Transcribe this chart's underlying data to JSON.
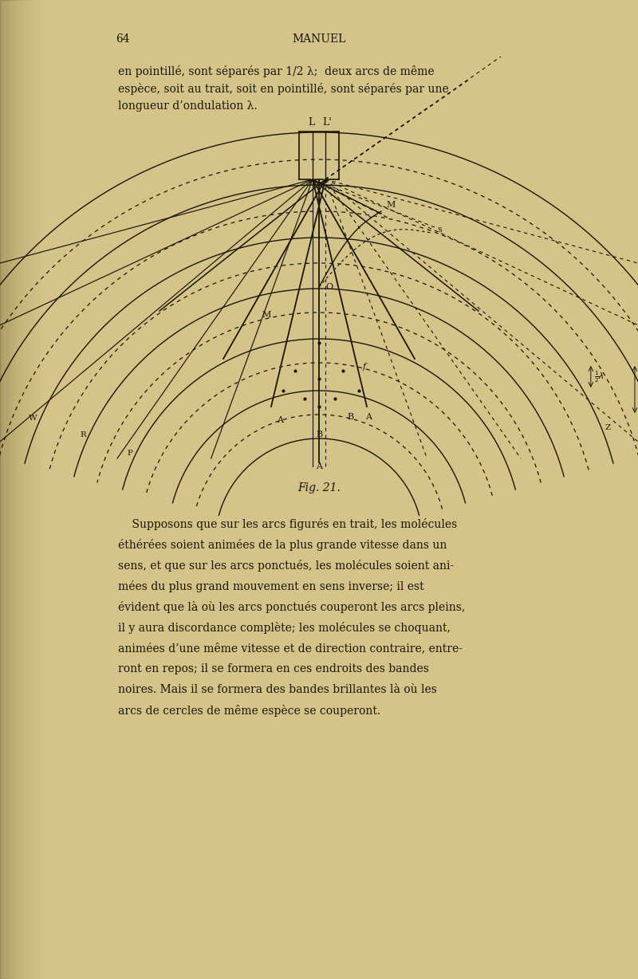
{
  "page_color": "#c8b882",
  "paper_color": "#d4c48a",
  "text_color": "#1a1508",
  "fig_width": 8.0,
  "fig_height": 12.28,
  "page_number": "64",
  "header_text": "MANUEL",
  "line1": "en pointillé, sont séparés par 1/2 λ;  deux arcs de même",
  "line2": "espèce, soit au trait, soit en pointillé, sont séparés par une",
  "line3": "longueur d’ondulation λ.",
  "fig_caption": "Fig. 21.",
  "p2l01": "    Supposons que sur les arcs figurés en trait, les molécules",
  "p2l02": "éthérées soient animées de la plus grande vitesse dans un",
  "p2l03": "sens, et que sur les arcs ponctués, les molécules soient ani-",
  "p2l04": "mées du plus grand mouvement en sens inverse; il est",
  "p2l05": "évident que là où les arcs ponctués couperont les arcs pleins,",
  "p2l06": "il y aura discordance complète; les molécules se choquant,",
  "p2l07": "animées d’une même vitesse et de direction contraire, entre-",
  "p2l08": "ront en repos; il se formera en ces endroits des bandes",
  "p2l09": "noires. Mais il se formera des bandes brillantes là où les",
  "p2l10": "arcs de cercles de même espèce se couperont."
}
